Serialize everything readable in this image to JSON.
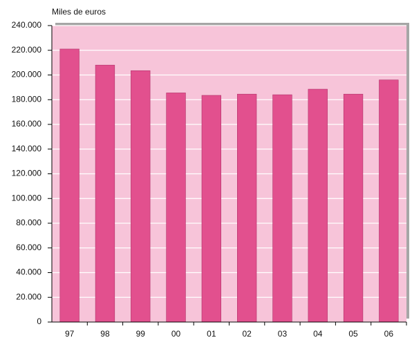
{
  "chart_data": {
    "type": "bar",
    "y_label": "Miles de euros",
    "categories": [
      "97",
      "98",
      "99",
      "00",
      "01",
      "02",
      "03",
      "04",
      "05",
      "06"
    ],
    "values": [
      221000,
      208000,
      203500,
      185500,
      183500,
      184500,
      184000,
      188500,
      184500,
      196000
    ],
    "color": "#e2508e",
    "ylim": [
      0,
      240000
    ],
    "yticks": [
      0,
      {
        "value": 20000,
        "label": "20.000"
      },
      {
        "value": 40000,
        "label": "40.000"
      },
      {
        "value": 60000,
        "label": "60.000"
      },
      {
        "value": 80000,
        "label": "80.000"
      },
      {
        "value": 100000,
        "label": "100.000"
      },
      {
        "value": 120000,
        "label": "120.000"
      },
      {
        "value": 140000,
        "label": "140.000"
      },
      {
        "value": 160000,
        "label": "160.000"
      },
      {
        "value": 180000,
        "label": "180.000"
      },
      {
        "value": 200000,
        "label": "200.000"
      },
      {
        "value": 220000,
        "label": "220.000"
      },
      {
        "value": 240000,
        "label": "240.000"
      }
    ],
    "grid": true
  }
}
